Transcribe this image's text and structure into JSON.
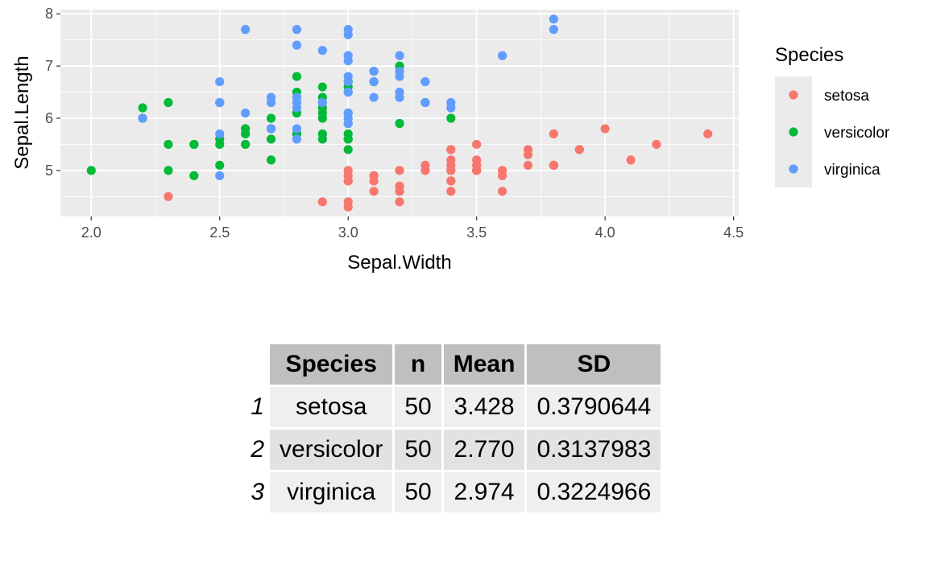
{
  "chart_data": {
    "type": "scatter",
    "xlabel": "Sepal.Width",
    "ylabel": "Sepal.Length",
    "xlim": [
      1.88,
      4.52
    ],
    "ylim": [
      4.12,
      8.08
    ],
    "xticks": [
      "2.0",
      "2.5",
      "3.0",
      "3.5",
      "4.0",
      "4.5"
    ],
    "yticks": [
      "5",
      "6",
      "7",
      "8"
    ],
    "xtick_values": [
      2.0,
      2.5,
      3.0,
      3.5,
      4.0,
      4.5
    ],
    "ytick_values": [
      5,
      6,
      7,
      8
    ],
    "grid": true,
    "legend": {
      "title": "Species",
      "position": "right"
    },
    "series": [
      {
        "name": "setosa",
        "color": "#F8766D",
        "points": [
          [
            3.5,
            5.1
          ],
          [
            3.0,
            4.9
          ],
          [
            3.2,
            4.7
          ],
          [
            3.1,
            4.6
          ],
          [
            3.6,
            5.0
          ],
          [
            3.9,
            5.4
          ],
          [
            3.4,
            4.6
          ],
          [
            3.4,
            5.0
          ],
          [
            2.9,
            4.4
          ],
          [
            3.1,
            4.9
          ],
          [
            3.7,
            5.4
          ],
          [
            3.4,
            4.8
          ],
          [
            3.0,
            4.8
          ],
          [
            3.0,
            4.3
          ],
          [
            4.0,
            5.8
          ],
          [
            4.4,
            5.7
          ],
          [
            3.9,
            5.4
          ],
          [
            3.5,
            5.1
          ],
          [
            3.8,
            5.7
          ],
          [
            3.8,
            5.1
          ],
          [
            3.4,
            5.4
          ],
          [
            3.7,
            5.1
          ],
          [
            3.6,
            4.6
          ],
          [
            3.3,
            5.1
          ],
          [
            3.4,
            4.8
          ],
          [
            3.0,
            5.0
          ],
          [
            3.4,
            5.0
          ],
          [
            3.5,
            5.2
          ],
          [
            3.4,
            5.2
          ],
          [
            3.2,
            4.7
          ],
          [
            3.1,
            4.8
          ],
          [
            3.4,
            5.4
          ],
          [
            4.1,
            5.2
          ],
          [
            4.2,
            5.5
          ],
          [
            3.1,
            4.9
          ],
          [
            3.2,
            5.0
          ],
          [
            3.5,
            5.5
          ],
          [
            3.6,
            4.9
          ],
          [
            3.0,
            4.4
          ],
          [
            3.4,
            5.1
          ],
          [
            3.5,
            5.0
          ],
          [
            2.3,
            4.5
          ],
          [
            3.2,
            4.4
          ],
          [
            3.5,
            5.0
          ],
          [
            3.8,
            5.1
          ],
          [
            3.0,
            4.8
          ],
          [
            3.8,
            5.1
          ],
          [
            3.2,
            4.6
          ],
          [
            3.7,
            5.3
          ],
          [
            3.3,
            5.0
          ]
        ]
      },
      {
        "name": "versicolor",
        "color": "#00BA38",
        "points": [
          [
            3.2,
            7.0
          ],
          [
            3.2,
            6.4
          ],
          [
            3.1,
            6.9
          ],
          [
            2.3,
            5.5
          ],
          [
            2.8,
            6.5
          ],
          [
            2.8,
            5.7
          ],
          [
            3.3,
            6.3
          ],
          [
            2.4,
            4.9
          ],
          [
            2.9,
            6.6
          ],
          [
            2.7,
            5.2
          ],
          [
            2.0,
            5.0
          ],
          [
            3.0,
            5.9
          ],
          [
            2.2,
            6.0
          ],
          [
            2.9,
            6.1
          ],
          [
            2.9,
            5.6
          ],
          [
            3.1,
            6.7
          ],
          [
            3.0,
            5.6
          ],
          [
            2.7,
            5.8
          ],
          [
            2.2,
            6.2
          ],
          [
            2.5,
            5.6
          ],
          [
            3.2,
            5.9
          ],
          [
            2.8,
            6.1
          ],
          [
            2.5,
            6.3
          ],
          [
            2.8,
            6.1
          ],
          [
            2.9,
            6.4
          ],
          [
            3.0,
            6.6
          ],
          [
            2.8,
            6.8
          ],
          [
            3.0,
            6.7
          ],
          [
            2.9,
            6.0
          ],
          [
            2.6,
            5.7
          ],
          [
            2.4,
            5.5
          ],
          [
            2.4,
            5.5
          ],
          [
            2.7,
            5.8
          ],
          [
            2.7,
            6.0
          ],
          [
            3.0,
            5.4
          ],
          [
            3.4,
            6.0
          ],
          [
            3.1,
            6.7
          ],
          [
            2.3,
            6.3
          ],
          [
            3.0,
            5.6
          ],
          [
            2.5,
            5.5
          ],
          [
            2.6,
            5.5
          ],
          [
            3.0,
            6.1
          ],
          [
            2.6,
            5.8
          ],
          [
            2.3,
            5.0
          ],
          [
            2.7,
            5.6
          ],
          [
            3.0,
            5.7
          ],
          [
            2.9,
            5.7
          ],
          [
            2.9,
            6.2
          ],
          [
            2.5,
            5.1
          ],
          [
            2.8,
            5.7
          ]
        ]
      },
      {
        "name": "virginica",
        "color": "#619CFF",
        "points": [
          [
            3.3,
            6.3
          ],
          [
            2.7,
            5.8
          ],
          [
            3.0,
            7.1
          ],
          [
            2.9,
            6.3
          ],
          [
            3.0,
            6.5
          ],
          [
            3.0,
            7.6
          ],
          [
            2.5,
            4.9
          ],
          [
            2.9,
            7.3
          ],
          [
            2.5,
            6.7
          ],
          [
            3.6,
            7.2
          ],
          [
            3.2,
            6.5
          ],
          [
            2.7,
            6.4
          ],
          [
            3.0,
            6.8
          ],
          [
            2.5,
            5.7
          ],
          [
            2.8,
            5.8
          ],
          [
            3.2,
            6.4
          ],
          [
            3.0,
            6.5
          ],
          [
            3.8,
            7.7
          ],
          [
            2.6,
            7.7
          ],
          [
            2.2,
            6.0
          ],
          [
            3.2,
            6.9
          ],
          [
            2.8,
            5.6
          ],
          [
            2.8,
            7.7
          ],
          [
            2.7,
            6.3
          ],
          [
            3.3,
            6.7
          ],
          [
            3.2,
            7.2
          ],
          [
            2.8,
            6.2
          ],
          [
            3.0,
            6.1
          ],
          [
            2.8,
            6.4
          ],
          [
            3.0,
            7.2
          ],
          [
            2.8,
            7.4
          ],
          [
            3.8,
            7.9
          ],
          [
            2.8,
            6.4
          ],
          [
            2.8,
            6.3
          ],
          [
            2.6,
            6.1
          ],
          [
            3.0,
            7.7
          ],
          [
            3.4,
            6.3
          ],
          [
            3.1,
            6.4
          ],
          [
            3.0,
            6.0
          ],
          [
            3.1,
            6.9
          ],
          [
            3.1,
            6.7
          ],
          [
            3.1,
            6.9
          ],
          [
            2.7,
            5.8
          ],
          [
            3.2,
            6.8
          ],
          [
            3.3,
            6.7
          ],
          [
            3.0,
            6.7
          ],
          [
            2.5,
            6.3
          ],
          [
            3.0,
            6.5
          ],
          [
            3.4,
            6.2
          ],
          [
            3.0,
            5.9
          ]
        ]
      }
    ]
  },
  "table": {
    "headers": [
      "Species",
      "n",
      "Mean",
      "SD"
    ],
    "rows": [
      {
        "rowname": "1",
        "cells": [
          "setosa",
          "50",
          "3.428",
          "0.3790644"
        ]
      },
      {
        "rowname": "2",
        "cells": [
          "versicolor",
          "50",
          "2.770",
          "0.3137983"
        ]
      },
      {
        "rowname": "3",
        "cells": [
          "virginica",
          "50",
          "2.974",
          "0.3224966"
        ]
      }
    ]
  },
  "colors": {
    "panel_background": "#EBEBEB",
    "grid": "#FFFFFF",
    "header_background": "#BFBFBF"
  }
}
